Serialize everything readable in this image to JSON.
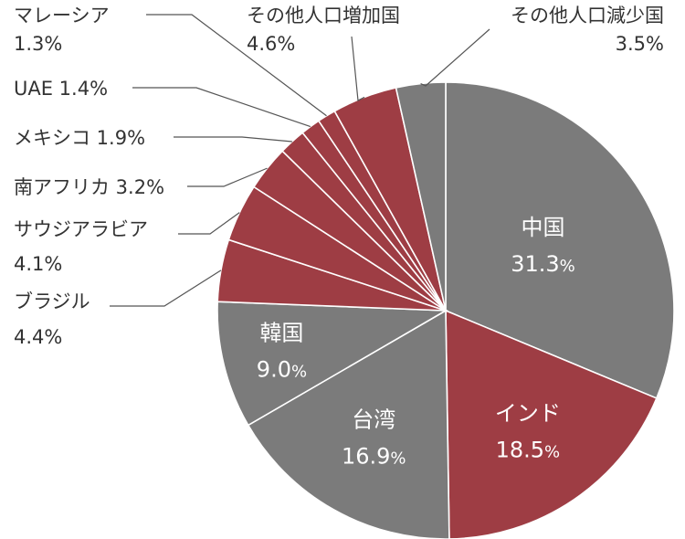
{
  "chart_data": {
    "type": "pie",
    "start": "12 o'clock, clockwise",
    "colors": {
      "gray": "#7b7b7b",
      "red": "#9e3d44"
    },
    "slices": [
      {
        "label": "中国",
        "value": 31.3,
        "value_text": "31.3",
        "color": "gray",
        "inside": true
      },
      {
        "label": "インド",
        "value": 18.5,
        "value_text": "18.5",
        "color": "red",
        "inside": true
      },
      {
        "label": "台湾",
        "value": 16.9,
        "value_text": "16.9",
        "color": "gray",
        "inside": true
      },
      {
        "label": "韓国",
        "value": 9.0,
        "value_text": "9.0",
        "color": "gray",
        "inside": true
      },
      {
        "label": "ブラジル",
        "value": 4.4,
        "value_text": "4.4%",
        "color": "red",
        "inside": false
      },
      {
        "label": "サウジアラビア",
        "value": 4.1,
        "value_text": "4.1%",
        "color": "red",
        "inside": false
      },
      {
        "label": "南アフリカ",
        "value": 3.2,
        "value_text": "3.2%",
        "color": "red",
        "inside": false
      },
      {
        "label": "メキシコ",
        "value": 1.9,
        "value_text": "1.9%",
        "color": "red",
        "inside": false
      },
      {
        "label": "UAE",
        "value": 1.4,
        "value_text": "1.4%",
        "color": "red",
        "inside": false
      },
      {
        "label": "マレーシア",
        "value": 1.3,
        "value_text": "1.3%",
        "color": "red",
        "inside": false
      },
      {
        "label": "その他人口増加国",
        "value": 4.6,
        "value_text": "4.6%",
        "color": "red",
        "inside": false
      },
      {
        "label": "その他人口減少国",
        "value": 3.5,
        "value_text": "3.5%",
        "color": "gray",
        "inside": false
      }
    ],
    "percent_sign": "%"
  }
}
